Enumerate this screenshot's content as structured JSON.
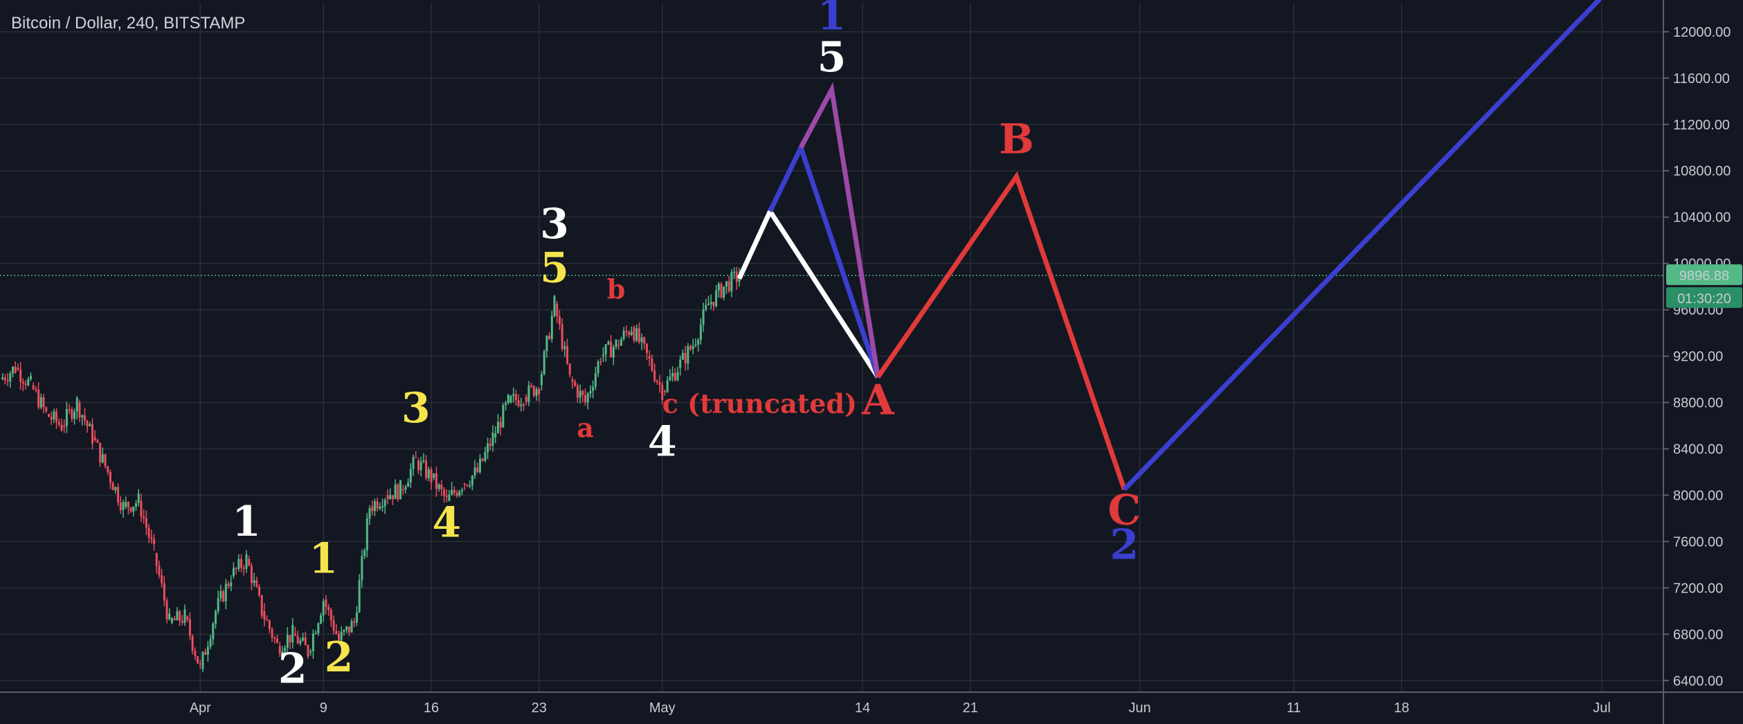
{
  "chart_title": "Bitcoin / Dollar, 240, BITSTAMP",
  "colors": {
    "background": "#131722",
    "grid": "#2a2e39",
    "candle_up": "#53b987",
    "candle_down": "#eb4d5c",
    "white_wave": "#ffffff",
    "yellow_wave": "#f5e44c",
    "red_wave": "#e03a3a",
    "blue_wave": "#3a3fd0",
    "purple_wave": "#9b4aa8",
    "price_line": "#53b987"
  },
  "chart_data": {
    "type": "candlestick",
    "symbol": "Bitcoin / Dollar",
    "interval": "240",
    "exchange": "BITSTAMP",
    "x_ticks": [
      "Apr",
      "9",
      "16",
      "23",
      "May",
      "14",
      "21",
      "Jun",
      "11",
      "18",
      "Jul"
    ],
    "x_tick_dates": [
      "2018-04-01",
      "2018-04-09",
      "2018-04-16",
      "2018-04-23",
      "2018-05-01",
      "2018-05-14",
      "2018-05-21",
      "2018-06-01",
      "2018-06-11",
      "2018-06-18",
      "2018-07-01"
    ],
    "y_ticks": [
      "6400.00",
      "6800.00",
      "7200.00",
      "7600.00",
      "8000.00",
      "8400.00",
      "8800.00",
      "9200.00",
      "9600.00",
      "10000.00",
      "10400.00",
      "10800.00",
      "11200.00",
      "11600.00",
      "12000.00"
    ],
    "y_range": [
      6300,
      12250
    ],
    "x_range": [
      "2018-03-19",
      "2018-07-05"
    ],
    "grid": true,
    "current_price": 9896.88,
    "current_price_label": "9896.88",
    "countdown_label": "01:30:20",
    "price_path": [
      [
        "2018-03-19",
        9000
      ],
      [
        "2018-03-20",
        9100
      ],
      [
        "2018-03-21",
        8950
      ],
      [
        "2018-03-22",
        8700
      ],
      [
        "2018-03-23",
        8600
      ],
      [
        "2018-03-24",
        8800
      ],
      [
        "2018-03-25",
        8500
      ],
      [
        "2018-03-26",
        8200
      ],
      [
        "2018-03-27",
        7900
      ],
      [
        "2018-03-28",
        7950
      ],
      [
        "2018-03-29",
        7500
      ],
      [
        "2018-03-30",
        6900
      ],
      [
        "2018-03-31",
        6950
      ],
      [
        "2018-04-01",
        6500
      ],
      [
        "2018-04-02",
        7000
      ],
      [
        "2018-04-03",
        7300
      ],
      [
        "2018-04-04",
        7450
      ],
      [
        "2018-04-05",
        7000
      ],
      [
        "2018-04-06",
        6700
      ],
      [
        "2018-04-07",
        6800
      ],
      [
        "2018-04-08",
        6650
      ],
      [
        "2018-04-09",
        7100
      ],
      [
        "2018-04-10",
        6750
      ],
      [
        "2018-04-11",
        6900
      ],
      [
        "2018-04-12",
        7900
      ],
      [
        "2018-04-13",
        8000
      ],
      [
        "2018-04-14",
        8050
      ],
      [
        "2018-04-15",
        8300
      ],
      [
        "2018-04-16",
        8150
      ],
      [
        "2018-04-17",
        7950
      ],
      [
        "2018-04-18",
        8100
      ],
      [
        "2018-04-19",
        8200
      ],
      [
        "2018-04-20",
        8500
      ],
      [
        "2018-04-21",
        8800
      ],
      [
        "2018-04-22",
        8850
      ],
      [
        "2018-04-23",
        8950
      ],
      [
        "2018-04-24",
        9650
      ],
      [
        "2018-04-25",
        9000
      ],
      [
        "2018-04-26",
        8800
      ],
      [
        "2018-04-27",
        9200
      ],
      [
        "2018-04-28",
        9300
      ],
      [
        "2018-04-29",
        9450
      ],
      [
        "2018-04-30",
        9200
      ],
      [
        "2018-05-01",
        8900
      ],
      [
        "2018-05-02",
        9100
      ],
      [
        "2018-05-03",
        9300
      ],
      [
        "2018-05-04",
        9650
      ],
      [
        "2018-05-05",
        9800
      ],
      [
        "2018-05-06",
        9896.88
      ]
    ],
    "projections": [
      {
        "color": "white",
        "points": [
          [
            "2018-05-06",
            9870
          ],
          [
            "2018-05-08",
            10450
          ],
          [
            "2018-05-15",
            9020
          ]
        ]
      },
      {
        "color": "blue",
        "points": [
          [
            "2018-05-08",
            10450
          ],
          [
            "2018-05-10",
            11000
          ],
          [
            "2018-05-15",
            9020
          ]
        ]
      },
      {
        "color": "purple",
        "points": [
          [
            "2018-05-10",
            11000
          ],
          [
            "2018-05-12",
            11500
          ],
          [
            "2018-05-15",
            9020
          ]
        ]
      },
      {
        "color": "red",
        "points": [
          [
            "2018-05-15",
            9020
          ],
          [
            "2018-05-24",
            10750
          ],
          [
            "2018-05-31",
            8050
          ]
        ]
      },
      {
        "color": "blue",
        "points": [
          [
            "2018-05-31",
            8050
          ],
          [
            "2018-07-01",
            12300
          ]
        ]
      }
    ],
    "annotations": [
      {
        "text": "1",
        "color": "white",
        "date": "2018-04-04",
        "price": 7650
      },
      {
        "text": "2",
        "color": "white",
        "date": "2018-04-07",
        "price": 6380
      },
      {
        "text": "1",
        "color": "yellow",
        "date": "2018-04-09",
        "price": 7330
      },
      {
        "text": "2",
        "color": "yellow",
        "date": "2018-04-10",
        "price": 6480
      },
      {
        "text": "3",
        "color": "yellow",
        "date": "2018-04-15",
        "price": 8630
      },
      {
        "text": "4",
        "color": "yellow",
        "date": "2018-04-17",
        "price": 7640
      },
      {
        "text": "3",
        "color": "white",
        "date": "2018-04-24",
        "price": 10220
      },
      {
        "text": "5",
        "color": "yellow",
        "date": "2018-04-24",
        "price": 9840
      },
      {
        "text": "a",
        "color": "red",
        "date": "2018-04-26",
        "price": 8500
      },
      {
        "text": "b",
        "color": "red",
        "date": "2018-04-28",
        "price": 9700
      },
      {
        "text": "c (truncated)",
        "color": "red",
        "date": "2018-05-01",
        "price": 8710,
        "anchor": "start"
      },
      {
        "text": "4",
        "color": "white",
        "date": "2018-05-01",
        "price": 8340
      },
      {
        "text": "1",
        "color": "blue",
        "date": "2018-05-12",
        "price": 12020
      },
      {
        "text": "5",
        "color": "white",
        "date": "2018-05-12",
        "price": 11660
      },
      {
        "text": "A",
        "color": "red",
        "date": "2018-05-15",
        "price": 8700
      },
      {
        "text": "B",
        "color": "red",
        "date": "2018-05-24",
        "price": 10950
      },
      {
        "text": "C",
        "color": "red",
        "date": "2018-05-31",
        "price": 7750
      },
      {
        "text": "2",
        "color": "blue",
        "date": "2018-05-31",
        "price": 7450
      }
    ]
  }
}
